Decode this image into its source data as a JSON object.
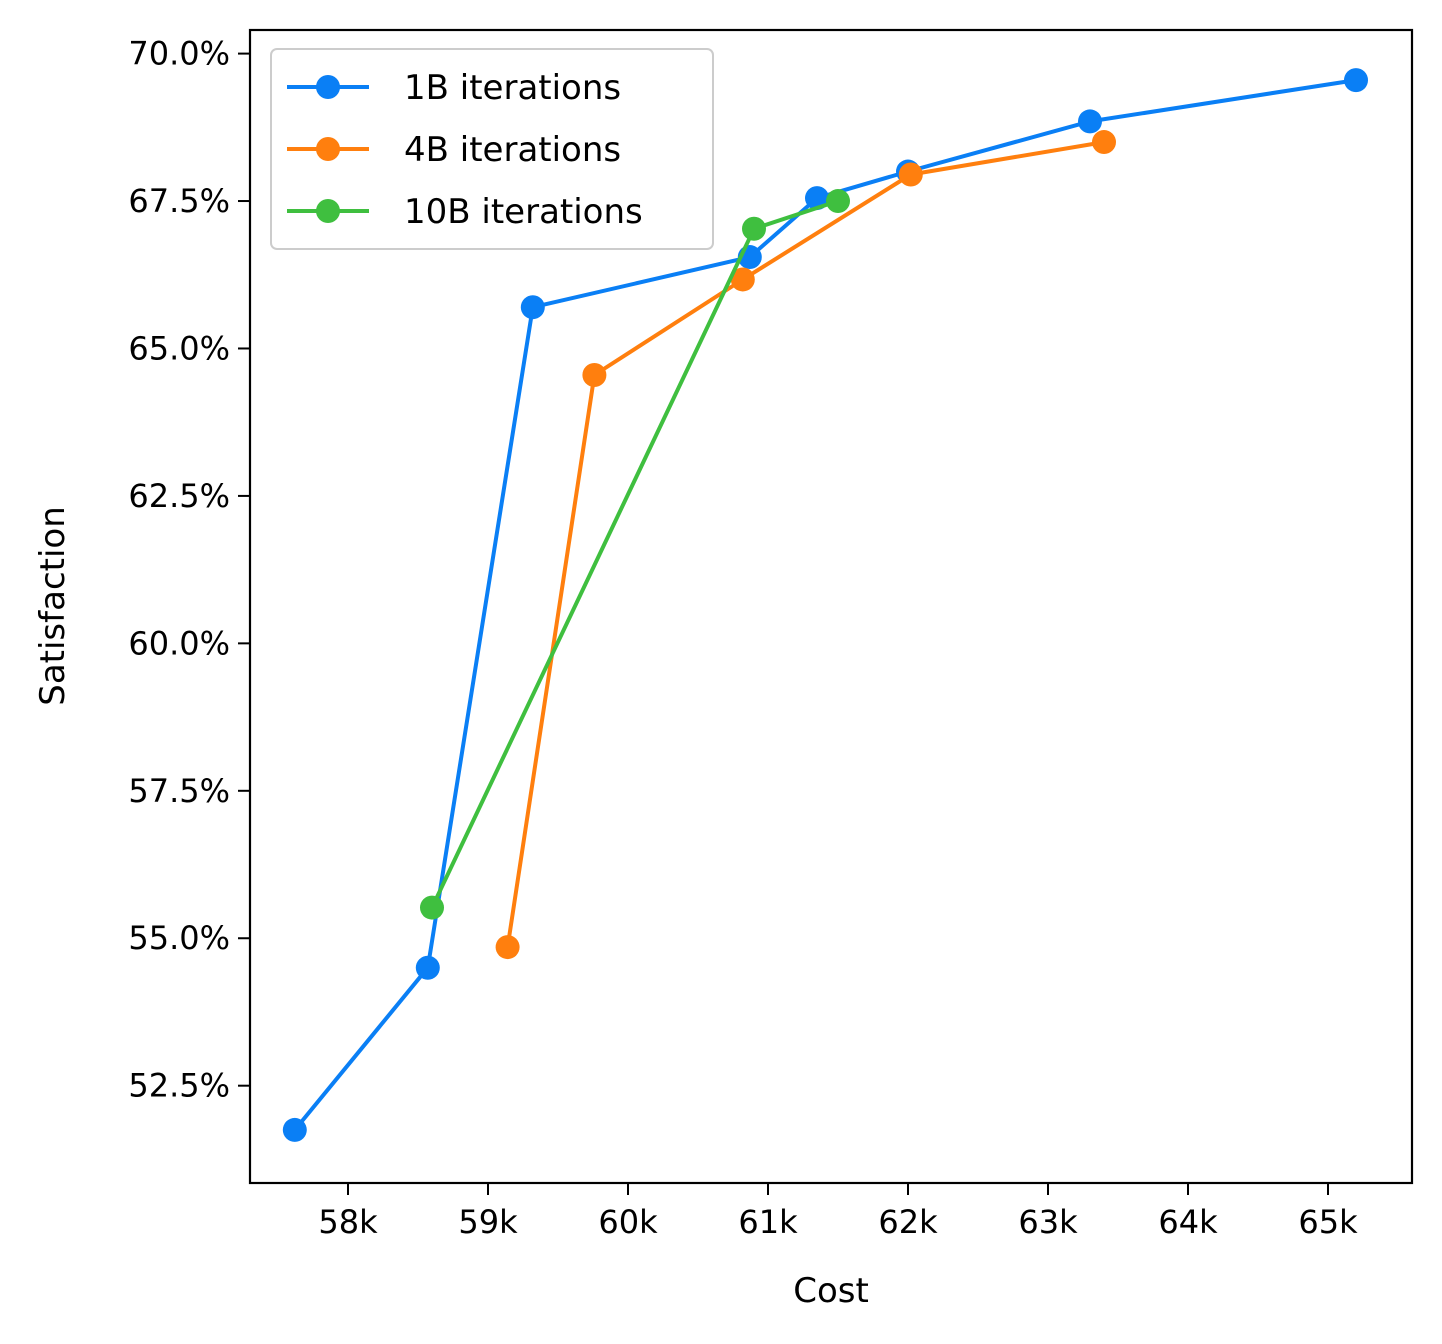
{
  "chart_data": {
    "type": "line",
    "title": "",
    "xlabel": "Cost",
    "ylabel": "Satisfaction",
    "xlim": [
      57300,
      65600
    ],
    "ylim": [
      50.85,
      70.4
    ],
    "x_ticks": [
      {
        "value": 58000,
        "label": "58k"
      },
      {
        "value": 59000,
        "label": "59k"
      },
      {
        "value": 60000,
        "label": "60k"
      },
      {
        "value": 61000,
        "label": "61k"
      },
      {
        "value": 62000,
        "label": "62k"
      },
      {
        "value": 63000,
        "label": "63k"
      },
      {
        "value": 64000,
        "label": "64k"
      },
      {
        "value": 65000,
        "label": "65k"
      }
    ],
    "y_ticks": [
      {
        "value": 52.5,
        "label": "52.5%"
      },
      {
        "value": 55.0,
        "label": "55.0%"
      },
      {
        "value": 57.5,
        "label": "57.5%"
      },
      {
        "value": 60.0,
        "label": "60.0%"
      },
      {
        "value": 62.5,
        "label": "62.5%"
      },
      {
        "value": 65.0,
        "label": "65.0%"
      },
      {
        "value": 67.5,
        "label": "67.5%"
      },
      {
        "value": 70.0,
        "label": "70.0%"
      }
    ],
    "grid": false,
    "legend_position": "upper-left",
    "series": [
      {
        "name": "1B iterations",
        "color": "#0a7ff5",
        "points": [
          {
            "x": 57620,
            "y": 51.75
          },
          {
            "x": 58570,
            "y": 54.5
          },
          {
            "x": 59320,
            "y": 65.7
          },
          {
            "x": 60870,
            "y": 66.55
          },
          {
            "x": 61350,
            "y": 67.55
          },
          {
            "x": 62000,
            "y": 68.0
          },
          {
            "x": 63300,
            "y": 68.85
          },
          {
            "x": 65200,
            "y": 69.55
          }
        ]
      },
      {
        "name": "4B iterations",
        "color": "#ff7f0e",
        "points": [
          {
            "x": 59140,
            "y": 54.85
          },
          {
            "x": 59760,
            "y": 64.55
          },
          {
            "x": 60820,
            "y": 66.17
          },
          {
            "x": 62020,
            "y": 67.95
          },
          {
            "x": 63400,
            "y": 68.5
          }
        ]
      },
      {
        "name": "10B iterations",
        "color": "#3fbf3f",
        "points": [
          {
            "x": 58600,
            "y": 55.52
          },
          {
            "x": 60900,
            "y": 67.03
          },
          {
            "x": 61500,
            "y": 67.5
          }
        ]
      }
    ]
  }
}
